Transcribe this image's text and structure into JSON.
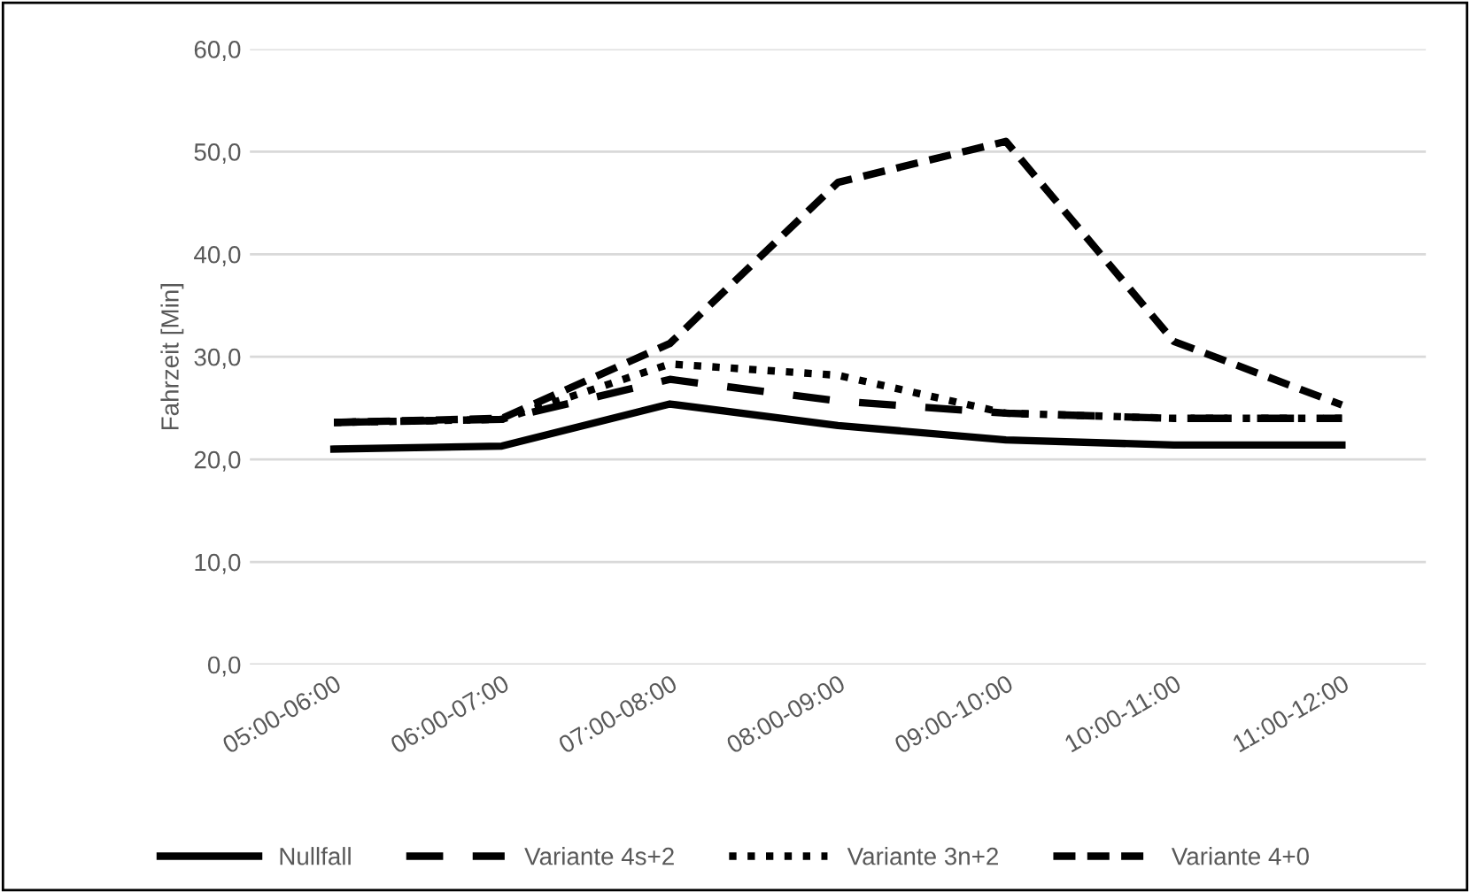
{
  "chart_data": {
    "type": "line",
    "ylabel": "Fahrzeit [Min]",
    "categories": [
      "05:00-06:00",
      "06:00-07:00",
      "07:00-08:00",
      "08:00-09:00",
      "09:00-10:00",
      "10:00-11:00",
      "11:00-12:00"
    ],
    "series": [
      {
        "name": "Nullfall",
        "color": "#000000",
        "line_style": "solid",
        "values": [
          21.0,
          21.3,
          25.4,
          23.3,
          21.9,
          21.4,
          21.4
        ]
      },
      {
        "name": "Variante 4s+2",
        "color": "#000000",
        "line_style": "dashed",
        "values": [
          23.6,
          23.9,
          27.8,
          25.7,
          24.5,
          24.0,
          24.0
        ]
      },
      {
        "name": "Variante 3n+2",
        "color": "#000000",
        "line_style": "dotted",
        "values": [
          23.6,
          23.9,
          29.3,
          28.2,
          24.5,
          24.0,
          24.0
        ]
      },
      {
        "name": "Variante 4+0",
        "color": "#000000",
        "line_style": "dashed",
        "values": [
          23.6,
          24.0,
          31.3,
          47.0,
          51.0,
          31.5,
          25.3
        ]
      }
    ],
    "ylim": [
      0,
      60
    ],
    "yticks": [
      {
        "value": 0,
        "label": "0,0"
      },
      {
        "value": 10,
        "label": "10,0"
      },
      {
        "value": 20,
        "label": "20,0"
      },
      {
        "value": 30,
        "label": "30,0"
      },
      {
        "value": 40,
        "label": "40,0"
      },
      {
        "value": 50,
        "label": "50,0"
      },
      {
        "value": 60,
        "label": "60,0"
      }
    ],
    "grid": "y",
    "legend": "bottom",
    "marker": "none"
  }
}
